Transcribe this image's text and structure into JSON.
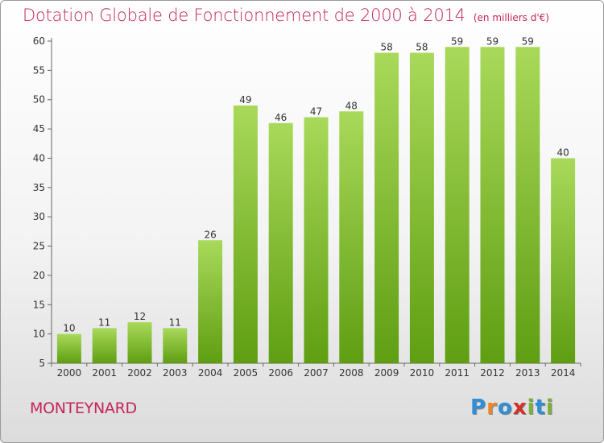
{
  "header": {
    "title": "Dotation Globale de Fonctionnement de 2000 à 2014",
    "unit": "(en milliers d'€)"
  },
  "commune": "MONTEYNARD",
  "logo": {
    "letters": [
      "P",
      "r",
      "o",
      "x",
      "i",
      "t",
      "i"
    ],
    "colors": [
      "#2f8fd6",
      "#e9862c",
      "#2f8fd6",
      "#d3302a",
      "#7bb33a",
      "#2f8fd6",
      "#7bb33a"
    ]
  },
  "colors": {
    "bar_light": "#a9d95a",
    "bar_dark": "#5f9e12",
    "accent": "#c4255a"
  },
  "chart_data": {
    "type": "bar",
    "categories": [
      "2000",
      "2001",
      "2002",
      "2003",
      "2004",
      "2005",
      "2006",
      "2007",
      "2008",
      "2009",
      "2010",
      "2011",
      "2012",
      "2013",
      "2014"
    ],
    "values": [
      10,
      11,
      12,
      11,
      26,
      49,
      46,
      47,
      48,
      58,
      58,
      59,
      59,
      59,
      40
    ],
    "ylim": [
      5,
      60
    ],
    "yticks": [
      5,
      10,
      15,
      20,
      25,
      30,
      35,
      40,
      45,
      50,
      55,
      60
    ],
    "grid": false,
    "legend": "none"
  }
}
